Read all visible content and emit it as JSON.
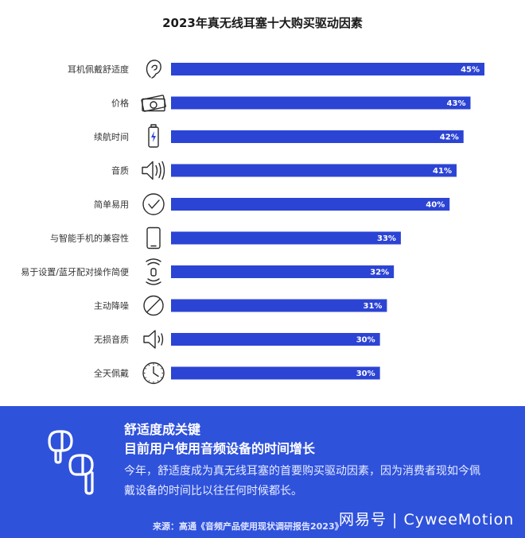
{
  "title": "2023年真无线耳塞十大购买驱动因素",
  "chart_data": {
    "type": "bar",
    "orientation": "horizontal",
    "title": "2023年真无线耳塞十大购买驱动因素",
    "categories": [
      "耳机佩戴舒适度",
      "价格",
      "续航时间",
      "音质",
      "简单易用",
      "与智能手机的兼容性",
      "易于设置/蓝牙配对操作简便",
      "主动降噪",
      "无损音质",
      "全天佩戴"
    ],
    "values": [
      45,
      43,
      42,
      41,
      40,
      33,
      32,
      31,
      30,
      30
    ],
    "value_labels": [
      "45%",
      "43%",
      "42%",
      "41%",
      "40%",
      "33%",
      "32%",
      "31%",
      "30%",
      "30%"
    ],
    "icons": [
      "ear-icon",
      "money-icon",
      "battery-icon",
      "speaker-wave-icon",
      "check-circle-icon",
      "smartphone-icon",
      "bluetooth-pairing-icon",
      "noise-cancel-icon",
      "speaker-icon",
      "clock-icon"
    ],
    "bar_color": "#2c44d4",
    "grid": false
  },
  "panel": {
    "background": "#2f52db",
    "heading_line1": "舒适度成关键",
    "heading_line2": "目前用户使用音频设备的时间增长",
    "body": "今年，舒适度成为真无线耳塞的首要购买驱动因素，因为消费者现如今佩戴设备的时间比以往任何时候都长。",
    "source": "来源：高通《音频产品使用现状调研报告2023》",
    "icon": "earbuds-icon",
    "watermark": "网易号 | CyweeMotion"
  }
}
